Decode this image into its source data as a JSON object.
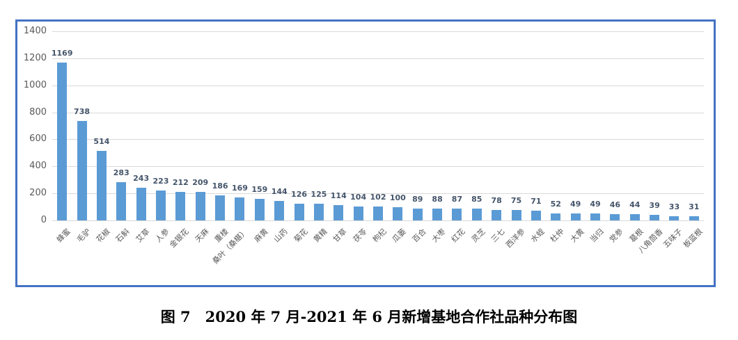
{
  "figure": {
    "caption": "图 7　2020 年 7 月-2021 年 6 月新增基地合作社品种分布图"
  },
  "chart_data": {
    "type": "bar",
    "title": "",
    "xlabel": "",
    "ylabel": "",
    "categories": [
      "蜂蜜",
      "毛驴",
      "花椒",
      "石斛",
      "艾草",
      "人参",
      "金银花",
      "天麻",
      "重楼",
      "桑叶（桑椹）",
      "麻黄",
      "山药",
      "菊花",
      "黄精",
      "甘草",
      "茯苓",
      "枸杞",
      "瓜蒌",
      "百合",
      "大枣",
      "红花",
      "灵芝",
      "三七",
      "西洋参",
      "水蛭",
      "杜仲",
      "大黄",
      "当归",
      "党参",
      "葛根",
      "八角茴香",
      "五味子",
      "板蓝根"
    ],
    "values": [
      1169,
      738,
      514,
      283,
      243,
      223,
      212,
      209,
      186,
      169,
      159,
      144,
      126,
      125,
      114,
      104,
      102,
      100,
      89,
      88,
      87,
      85,
      78,
      75,
      71,
      52,
      49,
      49,
      46,
      44,
      39,
      33,
      31
    ],
    "ylim": [
      0,
      1400
    ],
    "yticks": [
      0,
      200,
      400,
      600,
      800,
      1000,
      1200,
      1400
    ],
    "grid": true,
    "legend": "none",
    "category_label_rotation_deg": -45,
    "colors": {
      "bar": "#5B9BD5",
      "value_label": "#44546A",
      "axis_text": "#595959",
      "gridline": "#d9d9d9",
      "frame_border": "#4472C4",
      "background": "#ffffff"
    }
  }
}
